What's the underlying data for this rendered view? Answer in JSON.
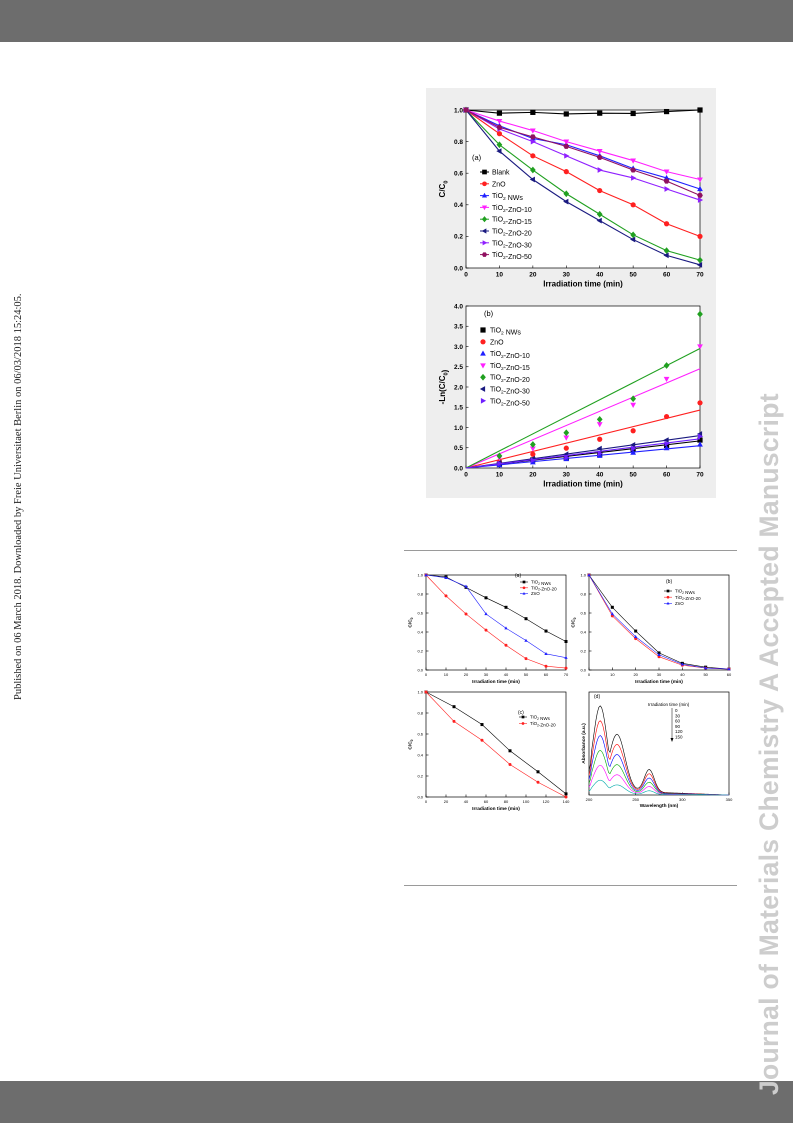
{
  "side_note": "Published on 06 March 2018. Downloaded by Freie Universitaet Berlin on 06/03/2018 15:24:05.",
  "watermark": "Journal of Materials Chemistry A Accepted Manuscript",
  "chart_data": [
    {
      "id": "fig-a",
      "type": "line",
      "panel_label": "(a)",
      "xlabel": "Irradiation time (min)",
      "ylabel": "C/C0",
      "xlim": [
        0,
        70
      ],
      "ylim": [
        0,
        1.0
      ],
      "x": [
        0,
        10,
        20,
        30,
        40,
        50,
        60,
        70
      ],
      "xticks": [
        "0",
        "10",
        "20",
        "30",
        "40",
        "50",
        "60",
        "70"
      ],
      "yticks": [
        "0.0",
        "0.2",
        "0.4",
        "0.6",
        "0.8",
        "1.0"
      ],
      "legend_position": "center-left",
      "series": [
        {
          "name": "Blank",
          "color": "#000000",
          "marker": "square",
          "values": [
            1.0,
            0.98,
            0.985,
            0.975,
            0.98,
            0.978,
            0.99,
            1.0
          ]
        },
        {
          "name": "ZnO",
          "color": "#ff2020",
          "marker": "circle",
          "values": [
            1.0,
            0.85,
            0.71,
            0.61,
            0.49,
            0.4,
            0.28,
            0.2
          ]
        },
        {
          "name": "TiO2 NWs",
          "color": "#2020ff",
          "marker": "triangle-up",
          "values": [
            1.0,
            0.9,
            0.82,
            0.78,
            0.71,
            0.63,
            0.57,
            0.5
          ]
        },
        {
          "name": "TiO2-ZnO-10",
          "color": "#ff20ff",
          "marker": "triangle-down",
          "values": [
            1.0,
            0.93,
            0.87,
            0.8,
            0.74,
            0.68,
            0.61,
            0.56
          ]
        },
        {
          "name": "TiO2-ZnO-15",
          "color": "#20a020",
          "marker": "diamond",
          "values": [
            1.0,
            0.78,
            0.62,
            0.47,
            0.34,
            0.21,
            0.11,
            0.05
          ]
        },
        {
          "name": "TiO2-ZnO-20",
          "color": "#1a1a80",
          "marker": "triangle-left",
          "values": [
            1.0,
            0.74,
            0.56,
            0.42,
            0.3,
            0.18,
            0.08,
            0.02
          ]
        },
        {
          "name": "TiO2-ZnO-30",
          "color": "#9020ff",
          "marker": "triangle-right",
          "values": [
            1.0,
            0.88,
            0.8,
            0.71,
            0.62,
            0.57,
            0.5,
            0.43
          ]
        },
        {
          "name": "TiO2-ZnO-50",
          "color": "#901060",
          "marker": "hexagon",
          "values": [
            1.0,
            0.89,
            0.83,
            0.77,
            0.7,
            0.62,
            0.55,
            0.46
          ]
        }
      ]
    },
    {
      "id": "fig-b",
      "type": "scatter",
      "panel_label": "(b)",
      "xlabel": "Irradiation time (min)",
      "ylabel": "-Ln(C/C0)",
      "xlim": [
        0,
        70
      ],
      "ylim": [
        0,
        4.0
      ],
      "x": [
        10,
        20,
        30,
        40,
        50,
        60,
        70
      ],
      "xticks": [
        "0",
        "10",
        "20",
        "30",
        "40",
        "50",
        "60",
        "70"
      ],
      "yticks": [
        "0.0",
        "0.5",
        "1.0",
        "1.5",
        "2.0",
        "2.5",
        "3.0",
        "3.5",
        "4.0"
      ],
      "legend_position": "top-left",
      "series": [
        {
          "name": "TiO2 NWs",
          "color": "#000000",
          "marker": "square",
          "values": [
            0.1,
            0.2,
            0.25,
            0.34,
            0.46,
            0.56,
            0.69
          ],
          "fit": 0.67
        },
        {
          "name": "ZnO",
          "color": "#ff2020",
          "marker": "circle",
          "values": [
            0.16,
            0.34,
            0.49,
            0.71,
            0.92,
            1.27,
            1.61
          ],
          "fit": 1.43
        },
        {
          "name": "TiO2-ZnO-10",
          "color": "#2020ff",
          "marker": "triangle-up",
          "values": [
            0.07,
            0.14,
            0.22,
            0.3,
            0.38,
            0.49,
            0.58
          ],
          "fit": 0.55
        },
        {
          "name": "TiO2-ZnO-15",
          "color": "#ff20ff",
          "marker": "triangle-down",
          "values": [
            0.25,
            0.48,
            0.75,
            1.08,
            1.56,
            2.2,
            3.0
          ],
          "fit": 2.45
        },
        {
          "name": "TiO2-ZnO-20",
          "color": "#20a020",
          "marker": "diamond",
          "values": [
            0.3,
            0.58,
            0.87,
            1.2,
            1.71,
            2.53,
            3.8
          ],
          "fit": 2.95
        },
        {
          "name": "TiO2-ZnO-30",
          "color": "#1a1a80",
          "marker": "triangle-left",
          "values": [
            0.13,
            0.23,
            0.34,
            0.48,
            0.57,
            0.69,
            0.84
          ],
          "fit": 0.8
        },
        {
          "name": "TiO2-ZnO-50",
          "color": "#7020ff",
          "marker": "triangle-right",
          "values": [
            0.11,
            0.19,
            0.26,
            0.36,
            0.48,
            0.6,
            0.78
          ],
          "fit": 0.72
        }
      ]
    },
    {
      "id": "fig-s-a",
      "type": "line",
      "panel_label": "(a)",
      "xlabel": "Irradiation time (min)",
      "ylabel": "C/C0",
      "xlim": [
        0,
        70
      ],
      "ylim": [
        0,
        1.0
      ],
      "x": [
        0,
        10,
        20,
        30,
        40,
        50,
        60,
        70
      ],
      "xticks": [
        "0",
        "10",
        "20",
        "30",
        "40",
        "50",
        "60",
        "70"
      ],
      "yticks": [
        "0.0",
        "0.2",
        "0.4",
        "0.6",
        "0.8",
        "1.0"
      ],
      "legend_position": "top-right",
      "series": [
        {
          "name": "TiO2 NWs",
          "color": "#000000",
          "marker": "square",
          "values": [
            1.0,
            0.98,
            0.87,
            0.76,
            0.66,
            0.54,
            0.41,
            0.3
          ]
        },
        {
          "name": "TiO2-ZnO-20",
          "color": "#ff2020",
          "marker": "circle",
          "values": [
            1.0,
            0.78,
            0.59,
            0.42,
            0.26,
            0.12,
            0.04,
            0.02
          ]
        },
        {
          "name": "ZnO",
          "color": "#2020ff",
          "marker": "triangle-up",
          "values": [
            1.0,
            0.97,
            0.88,
            0.59,
            0.44,
            0.31,
            0.17,
            0.13
          ]
        }
      ]
    },
    {
      "id": "fig-s-b",
      "type": "line",
      "panel_label": "(b)",
      "xlabel": "Irradiation time (min)",
      "ylabel": "C/C0",
      "xlim": [
        0,
        60
      ],
      "ylim": [
        0,
        1.0
      ],
      "x": [
        0,
        10,
        20,
        30,
        40,
        50,
        60
      ],
      "xticks": [
        "0",
        "10",
        "20",
        "30",
        "40",
        "50",
        "60"
      ],
      "yticks": [
        "0.0",
        "0.2",
        "0.4",
        "0.6",
        "0.8",
        "1.0"
      ],
      "legend_position": "top-right",
      "series": [
        {
          "name": "TiO2 NWs",
          "color": "#000000",
          "marker": "square",
          "values": [
            1.0,
            0.66,
            0.41,
            0.18,
            0.07,
            0.03,
            0.01
          ]
        },
        {
          "name": "TiO2-ZnO-20",
          "color": "#ff2020",
          "marker": "circle",
          "values": [
            1.0,
            0.57,
            0.33,
            0.14,
            0.05,
            0.02,
            0.01
          ]
        },
        {
          "name": "ZnO",
          "color": "#2020ff",
          "marker": "triangle-up",
          "values": [
            1.0,
            0.59,
            0.35,
            0.16,
            0.06,
            0.02,
            0.01
          ]
        }
      ]
    },
    {
      "id": "fig-s-c",
      "type": "line",
      "panel_label": "(c)",
      "xlabel": "Irradiation time (min)",
      "ylabel": "C/C0",
      "xlim": [
        0,
        150
      ],
      "ylim": [
        0,
        1.0
      ],
      "x": [
        0,
        30,
        60,
        90,
        120,
        150
      ],
      "xticks": [
        "0",
        "20",
        "40",
        "60",
        "80",
        "100",
        "120",
        "140"
      ],
      "yticks": [
        "0.0",
        "0.2",
        "0.4",
        "0.6",
        "0.8",
        "1.0"
      ],
      "legend_position": "top-right",
      "series": [
        {
          "name": "TiO2 NWs",
          "color": "#000000",
          "marker": "square",
          "values": [
            1.0,
            0.86,
            0.69,
            0.44,
            0.24,
            0.03
          ]
        },
        {
          "name": "TiO2-ZnO-20",
          "color": "#ff2020",
          "marker": "circle",
          "values": [
            1.0,
            0.72,
            0.54,
            0.31,
            0.14,
            0.0
          ]
        }
      ]
    },
    {
      "id": "fig-s-d",
      "type": "line",
      "panel_label": "(d)",
      "xlabel": "Wavelength (nm)",
      "ylabel": "Absorbance (a.u.)",
      "xlim": [
        200,
        350
      ],
      "xticks": [
        "200",
        "250",
        "300",
        "350"
      ],
      "legend_title": "Irradiation time (min)",
      "legend_values": [
        "0",
        "30",
        "60",
        "90",
        "120",
        "150"
      ],
      "series_colors": [
        "#000000",
        "#ff0000",
        "#0000ff",
        "#00aa00",
        "#ff00ff",
        "#00aaaa"
      ]
    }
  ]
}
